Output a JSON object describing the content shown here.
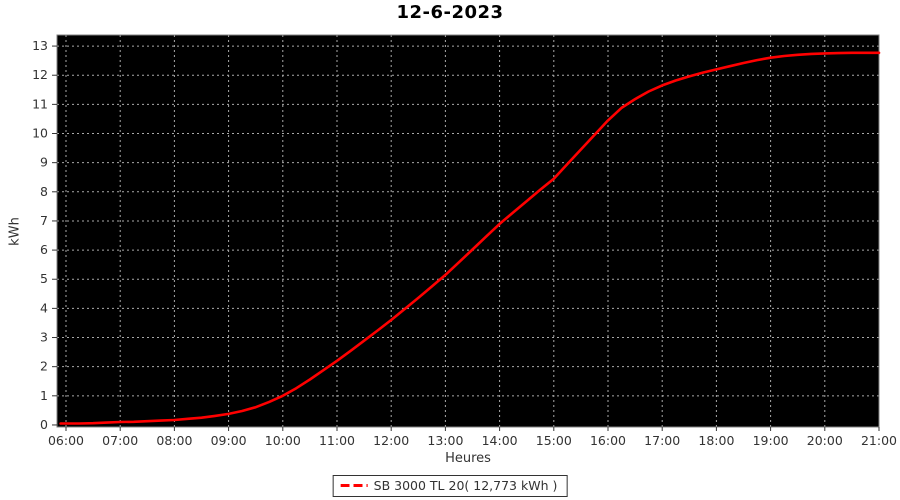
{
  "title": "12-6-2023",
  "xlabel": "Heures",
  "ylabel": "kWh",
  "legend": {
    "marker": "red-dashed-line",
    "label": "SB 3000 TL 20( 12,773 kWh )"
  },
  "colors": {
    "page_bg": "#ffffff",
    "plot_bg": "#000000",
    "grid": "#aaaaaa",
    "border": "#808080",
    "line": "#ff0000",
    "text": "#333333",
    "title_text": "#000000"
  },
  "chart_data": {
    "type": "line",
    "title": "12-6-2023",
    "xlabel": "Heures",
    "ylabel": "kWh",
    "grid": true,
    "grid_style": "dotted",
    "legend_position": "bottom",
    "x_ticks": [
      "06:00",
      "07:00",
      "08:00",
      "09:00",
      "10:00",
      "11:00",
      "12:00",
      "13:00",
      "14:00",
      "15:00",
      "16:00",
      "17:00",
      "18:00",
      "19:00",
      "20:00",
      "21:00"
    ],
    "y_ticks": [
      "0",
      "1",
      "2",
      "3",
      "4",
      "5",
      "6",
      "7",
      "8",
      "9",
      "10",
      "11",
      "12",
      "13"
    ],
    "xlim": [
      5.834,
      21.0
    ],
    "ylim": [
      -0.07,
      13.38
    ],
    "series": [
      {
        "name": "SB 3000 TL 20( 12,773 kWh )",
        "color": "#ff0000",
        "x": [
          5.9,
          6.0,
          6.25,
          6.5,
          6.75,
          7.0,
          7.25,
          7.5,
          7.75,
          8.0,
          8.25,
          8.5,
          8.75,
          9.0,
          9.25,
          9.5,
          9.75,
          10.0,
          10.25,
          10.5,
          10.75,
          11.0,
          11.25,
          11.5,
          11.75,
          12.0,
          12.25,
          12.5,
          12.75,
          13.0,
          13.25,
          13.5,
          13.75,
          14.0,
          14.25,
          14.5,
          14.75,
          15.0,
          15.25,
          15.5,
          15.75,
          16.0,
          16.25,
          16.5,
          16.75,
          17.0,
          17.25,
          17.5,
          17.75,
          18.0,
          18.25,
          18.5,
          18.75,
          19.0,
          19.25,
          19.5,
          19.75,
          20.0,
          20.25,
          20.5,
          20.75,
          21.0
        ],
        "values": [
          0.05,
          0.05,
          0.05,
          0.06,
          0.08,
          0.1,
          0.11,
          0.13,
          0.15,
          0.17,
          0.21,
          0.25,
          0.31,
          0.38,
          0.48,
          0.61,
          0.79,
          1.0,
          1.26,
          1.56,
          1.88,
          2.2,
          2.54,
          2.89,
          3.24,
          3.6,
          3.98,
          4.36,
          4.75,
          5.15,
          5.58,
          6.02,
          6.46,
          6.9,
          7.29,
          7.68,
          8.07,
          8.45,
          8.95,
          9.45,
          9.95,
          10.45,
          10.88,
          11.18,
          11.44,
          11.65,
          11.82,
          11.96,
          12.09,
          12.2,
          12.31,
          12.42,
          12.52,
          12.6,
          12.66,
          12.7,
          12.73,
          12.75,
          12.76,
          12.77,
          12.77,
          12.77
        ]
      }
    ]
  }
}
